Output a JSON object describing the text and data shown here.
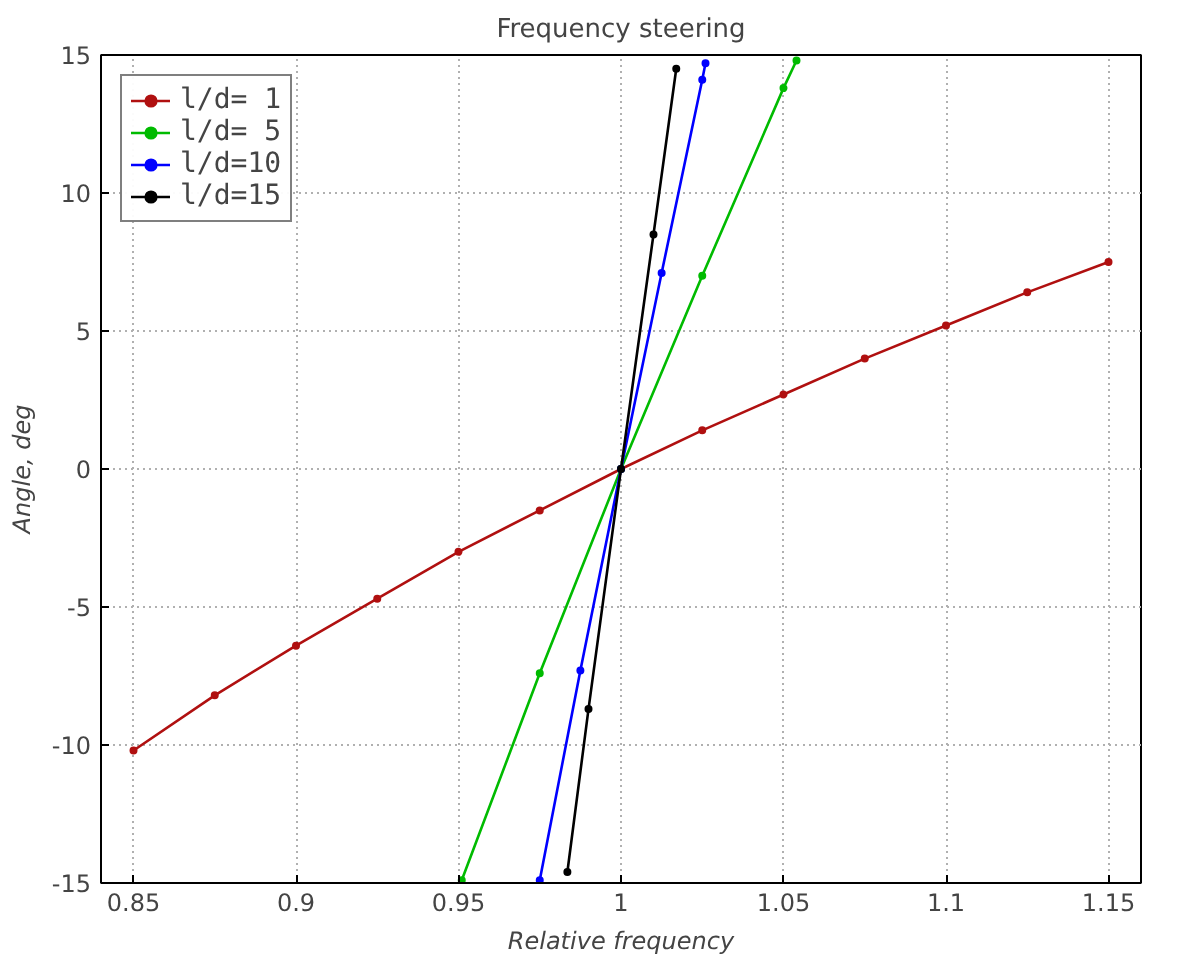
{
  "chart_data": {
    "type": "line",
    "title": "Frequency steering",
    "xlabel": "Relative frequency",
    "ylabel": "Angle, deg",
    "xlim": [
      0.84,
      1.16
    ],
    "ylim": [
      -15,
      15
    ],
    "xticks": [
      0.85,
      0.9,
      0.95,
      1,
      1.05,
      1.1,
      1.15
    ],
    "yticks": [
      -15,
      -10,
      -5,
      0,
      5,
      10,
      15
    ],
    "grid": true,
    "legend": "top left",
    "marker": "circle",
    "line_style": "solid",
    "series": [
      {
        "name": "l/d= 1",
        "color": "#b01010",
        "x": [
          0.85,
          0.875,
          0.9,
          0.925,
          0.95,
          0.975,
          1.0,
          1.025,
          1.05,
          1.075,
          1.1,
          1.125,
          1.15
        ],
        "values": [
          -10.2,
          -8.2,
          -6.4,
          -4.7,
          -3.0,
          -1.5,
          0,
          1.4,
          2.7,
          4.0,
          5.2,
          6.4,
          7.5
        ]
      },
      {
        "name": "l/d= 5",
        "color": "#00bb00",
        "x": [
          0.951,
          0.975,
          1.0,
          1.025,
          1.05,
          1.054
        ],
        "values": [
          -14.9,
          -7.4,
          0,
          7.0,
          13.8,
          14.8
        ]
      },
      {
        "name": "l/d=10",
        "color": "#0000ff",
        "x": [
          0.975,
          0.9875,
          1.0,
          1.0125,
          1.025,
          1.026
        ],
        "values": [
          -14.9,
          -7.3,
          0,
          7.1,
          14.1,
          14.7
        ]
      },
      {
        "name": "l/d=15",
        "color": "#000000",
        "x": [
          0.9835,
          0.99,
          1.0,
          1.01,
          1.017
        ],
        "values": [
          -14.6,
          -8.7,
          0,
          8.5,
          14.5
        ]
      }
    ]
  }
}
